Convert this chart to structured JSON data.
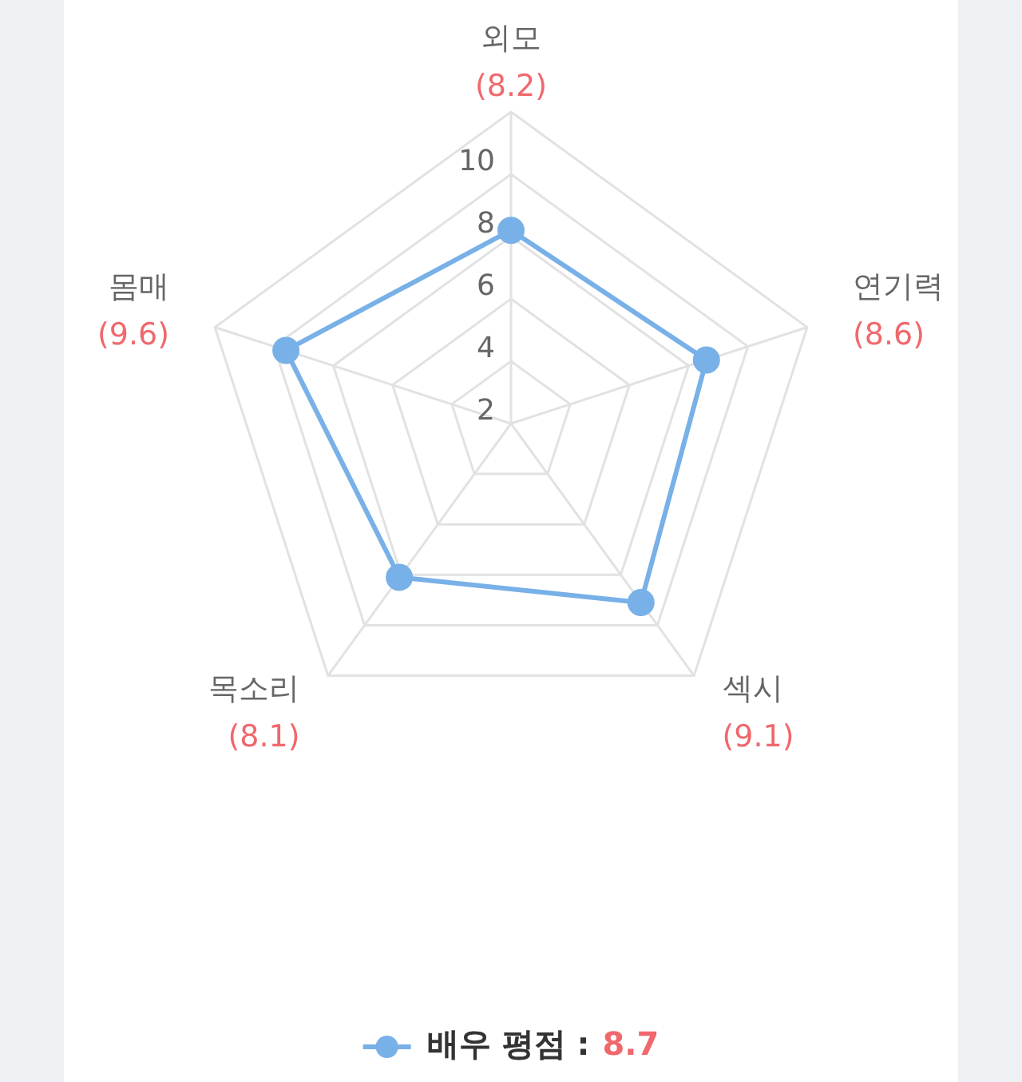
{
  "chart_data": {
    "type": "radar",
    "categories": [
      "외모",
      "연기력",
      "섹시",
      "목소리",
      "몸매"
    ],
    "series": [
      {
        "name": "배우 평점 :",
        "color": "#78b0e8",
        "values": [
          8.2,
          8.6,
          9.1,
          8.1,
          9.6
        ]
      }
    ],
    "ylim": [
      2,
      12
    ],
    "yticks": [
      2,
      4,
      6,
      8,
      10
    ],
    "grid": true,
    "legend": "bottom",
    "marker": "circle",
    "annotations": [
      {
        "text": "(8.2)",
        "x": "외모"
      },
      {
        "text": "(8.6)",
        "x": "연기력"
      },
      {
        "text": "(9.1)",
        "x": "섹시"
      },
      {
        "text": "(8.1)",
        "x": "목소리"
      },
      {
        "text": "(9.6)",
        "x": "몸매"
      },
      "8.7"
    ]
  }
}
